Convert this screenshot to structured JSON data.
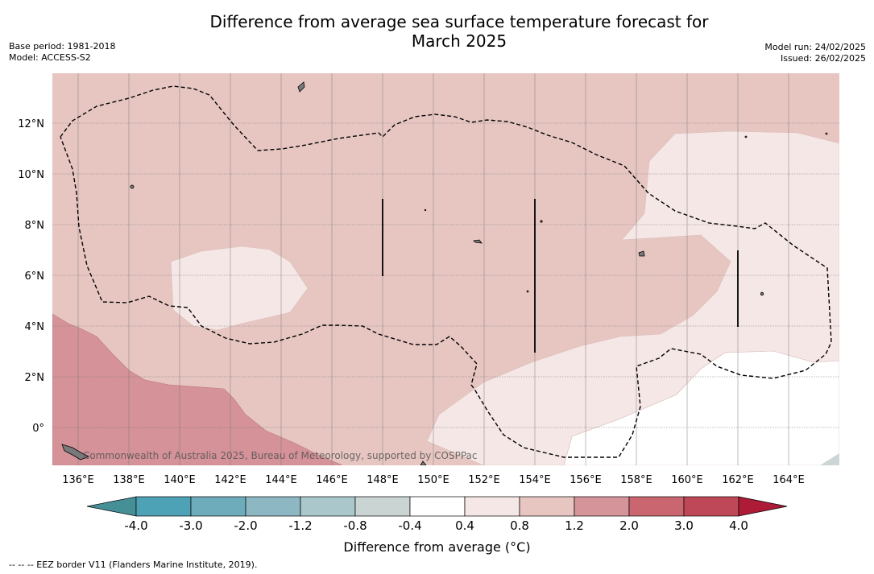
{
  "header": {
    "title_line1": "Difference from average sea surface temperature forecast for",
    "title_line2": "March 2025",
    "base_period": "Base period: 1981-2018",
    "model": "Model: ACCESS-S2",
    "model_run": "Model run: 24/02/2025",
    "issued": "Issued: 26/02/2025"
  },
  "map": {
    "lon_labels": [
      "136°E",
      "138°E",
      "140°E",
      "142°E",
      "144°E",
      "146°E",
      "148°E",
      "150°E",
      "152°E",
      "154°E",
      "156°E",
      "158°E",
      "160°E",
      "162°E",
      "164°E"
    ],
    "lat_labels": [
      "12°N",
      "10°N",
      "8°N",
      "6°N",
      "4°N",
      "2°N",
      "0°"
    ],
    "attribution": "Commonwealth of Australia 2025, Bureau of Meteorology, supported by COSPPac",
    "colors": {
      "anom_0_4_0_8": "#f5e7e5",
      "anom_0_8_1_2": "#e7c6c2",
      "anom_1_2_2_0": "#d59298",
      "neutral": "#ffffff",
      "land": "#7a7a7a"
    }
  },
  "colorbar": {
    "ticks": [
      "-4.0",
      "-3.0",
      "-2.0",
      "-1.2",
      "-0.8",
      "-0.4",
      "0.4",
      "0.8",
      "1.2",
      "2.0",
      "3.0",
      "4.0"
    ],
    "colors": [
      "#458f97",
      "#4da2b6",
      "#6eacbc",
      "#8db8c3",
      "#aac8cb",
      "#c9d4d3",
      "#ffffff",
      "#f5e7e5",
      "#e7c6c2",
      "#d5939a",
      "#c96670",
      "#bf4858",
      "#ad1b37"
    ],
    "label": "Difference from average (°C)"
  },
  "footer": {
    "legend_text": "--  --  -- EEZ border V11 (Flanders Marine Institute, 2019)."
  }
}
